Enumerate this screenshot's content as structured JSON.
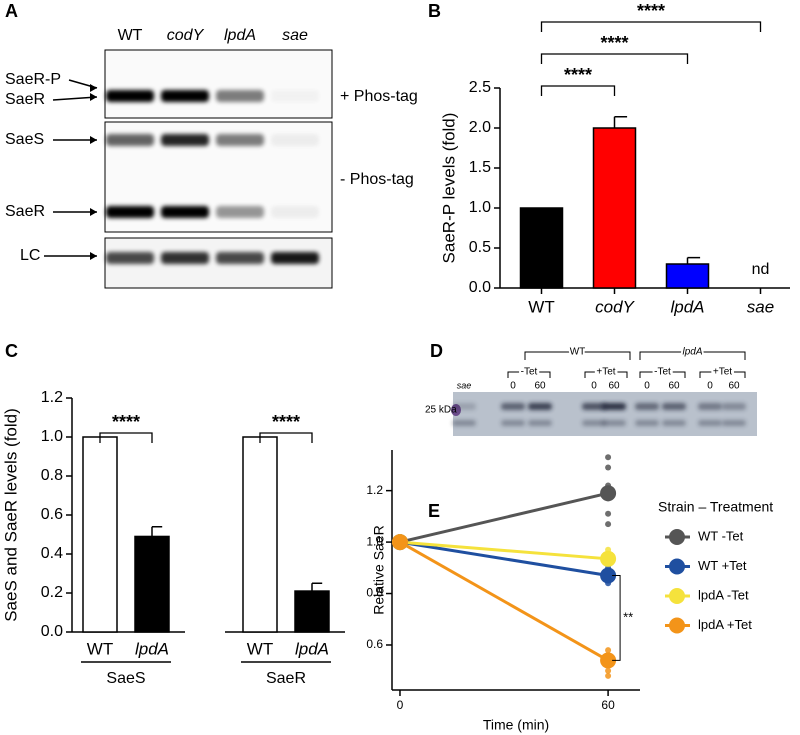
{
  "blots": [
    {
      "panel": "A",
      "lanes": [
        "WT",
        "codY",
        "lpdA",
        "sae"
      ],
      "band_labels": [
        "SaeR-P",
        "SaeR",
        "SaeS",
        "SaeR",
        "LC"
      ],
      "conditions": [
        "+ Phos-tag",
        "- Phos-tag"
      ]
    },
    {
      "panel": "D",
      "strains": [
        "WT",
        "lpdA"
      ],
      "treatments": [
        "-Tet",
        "+Tet",
        "-Tet",
        "+Tet"
      ],
      "times": [
        0,
        60,
        0,
        60,
        0,
        60,
        0,
        60
      ],
      "control": "sae",
      "marker": "25 kDa"
    }
  ],
  "chart_data": [
    {
      "type": "bar",
      "panel": "B",
      "y_label": "SaeR-P levels (fold)",
      "categories": [
        "WT",
        "codY",
        "lpdA",
        "sae"
      ],
      "values": [
        1.0,
        2.0,
        0.3,
        null
      ],
      "errors": [
        null,
        0.14,
        0.08,
        null
      ],
      "value_labels": [
        null,
        null,
        null,
        "nd"
      ],
      "colors": [
        "#000000",
        "#ff0000",
        "#0000ff",
        null
      ],
      "ylim": [
        0,
        2.5
      ],
      "yticks": [
        {
          "value": 0,
          "label": "0.0"
        },
        0.5,
        {
          "value": 1,
          "label": "1.0"
        },
        1.5,
        {
          "value": 2,
          "label": "2.0"
        },
        2.5
      ],
      "comparisons": [
        {
          "label": "****",
          "between": [
            0,
            1
          ]
        },
        {
          "label": "****",
          "between": [
            0,
            2
          ]
        },
        {
          "label": "****",
          "between": [
            0,
            3
          ]
        }
      ]
    },
    {
      "type": "grouped_bar",
      "panel": "C",
      "y_label": "SaeS and SaeR levels (fold)",
      "groups": [
        "SaeS",
        "SaeR"
      ],
      "categories": [
        "WT",
        "lpdA",
        "WT",
        "lpdA"
      ],
      "values": [
        1.0,
        0.49,
        1.0,
        0.21
      ],
      "errors": [
        null,
        0.05,
        null,
        0.04
      ],
      "colors": [
        "#ffffff",
        "#000000",
        "#ffffff",
        "#000000"
      ],
      "ylim": [
        0,
        1.2
      ],
      "yticks": [
        {
          "value": 0,
          "label": "0.0"
        },
        0.2,
        0.4,
        0.6,
        0.8,
        {
          "value": 1,
          "label": "1.0"
        },
        1.2
      ],
      "comparisons": [
        {
          "label": "****",
          "between": [
            0,
            1
          ]
        },
        {
          "label": "****",
          "between": [
            2,
            3
          ]
        }
      ]
    },
    {
      "type": "line",
      "panel": "E",
      "x_label": "Time (min)",
      "y_label": "Relative SaeR",
      "legend_title": "Strain – Treatment",
      "x": [
        0,
        60
      ],
      "series": [
        {
          "name": "WT -Tet",
          "color": "#555555",
          "values": [
            1.0,
            1.19
          ],
          "replicates": [
            1.33,
            1.29,
            1.22,
            1.17,
            1.11,
            1.07
          ]
        },
        {
          "name": "WT +Tet",
          "color": "#1f4fa0",
          "values": [
            1.0,
            0.87
          ],
          "replicates": [
            0.9,
            0.86,
            0.84
          ]
        },
        {
          "name": "lpdA -Tet",
          "color": "#f5e23c",
          "values": [
            1.0,
            0.935
          ],
          "replicates": [
            0.97,
            0.95,
            0.92,
            0.89
          ]
        },
        {
          "name": "lpdA +Tet",
          "color": "#f39419",
          "values": [
            1.0,
            0.54
          ],
          "replicates": [
            0.58,
            0.55,
            0.5,
            0.48
          ]
        }
      ],
      "xlim": [
        -2.3,
        69.2
      ],
      "xticks": [
        0,
        60
      ],
      "ylim": [
        0.425,
        1.358
      ],
      "yticks": [
        0.6,
        0.8,
        {
          "value": 1,
          "label": "1.0"
        },
        1.2
      ],
      "comparisons": [
        {
          "label": "**",
          "between": [
            1,
            3
          ]
        }
      ]
    }
  ]
}
